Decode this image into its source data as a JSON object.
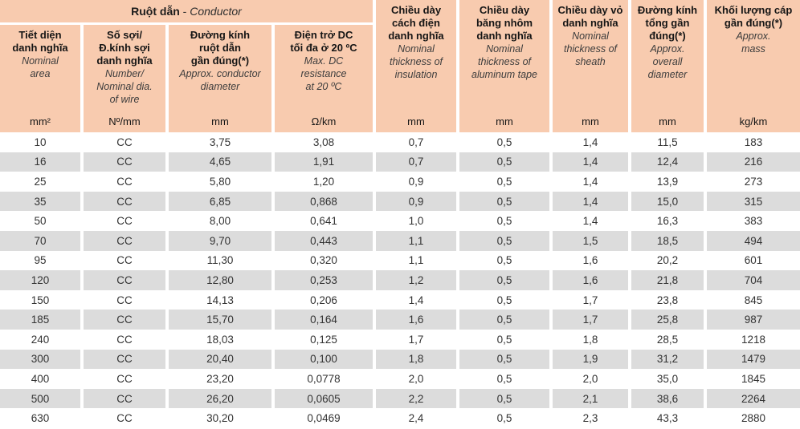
{
  "table": {
    "group_header": {
      "vi": "Ruột dẫn",
      "sep": " - ",
      "en": "Conductor"
    },
    "columns": [
      {
        "id": "nominal-area",
        "vi": "Tiết diện\ndanh nghĩa",
        "en": "Nominal\narea",
        "unit": "mm²"
      },
      {
        "id": "number-wire-dia",
        "vi": "Số sợi/\nĐ.kính sợi\ndanh nghĩa",
        "en": "Number/\nNominal dia.\nof wire",
        "unit": "Nº/mm"
      },
      {
        "id": "conductor-diameter",
        "vi": "Đường kính\nruột dẫn\ngần đúng(*)",
        "en": "Approx. conductor\ndiameter",
        "unit": "mm"
      },
      {
        "id": "dc-resistance",
        "vi": "Điện trở DC\ntối đa ở 20 ºC",
        "en": "Max. DC\nresistance\nat 20 ºC",
        "unit": "Ω/km"
      },
      {
        "id": "insulation-thickness",
        "vi": "Chiều dày\ncách điện\ndanh nghĩa",
        "en": "Nominal\nthickness of\ninsulation",
        "unit": "mm"
      },
      {
        "id": "aluminum-tape",
        "vi": "Chiều dày\nbăng nhôm\ndanh nghĩa",
        "en": "Nominal\nthickness of\naluminum tape",
        "unit": "mm"
      },
      {
        "id": "sheath-thickness",
        "vi": "Chiều dày vỏ\ndanh nghĩa",
        "en": "Nominal\nthickness of\nsheath",
        "unit": "mm"
      },
      {
        "id": "overall-diameter",
        "vi": "Đường kính\ntổng gần\nđúng(*)",
        "en": "Approx.\noverall\ndiameter",
        "unit": "mm"
      },
      {
        "id": "approx-mass",
        "vi": "Khối lượng cáp\ngần đúng(*)",
        "en": "Approx.\nmass",
        "unit": "kg/km"
      }
    ],
    "rows": [
      [
        "10",
        "CC",
        "3,75",
        "3,08",
        "0,7",
        "0,5",
        "1,4",
        "11,5",
        "183"
      ],
      [
        "16",
        "CC",
        "4,65",
        "1,91",
        "0,7",
        "0,5",
        "1,4",
        "12,4",
        "216"
      ],
      [
        "25",
        "CC",
        "5,80",
        "1,20",
        "0,9",
        "0,5",
        "1,4",
        "13,9",
        "273"
      ],
      [
        "35",
        "CC",
        "6,85",
        "0,868",
        "0,9",
        "0,5",
        "1,4",
        "15,0",
        "315"
      ],
      [
        "50",
        "CC",
        "8,00",
        "0,641",
        "1,0",
        "0,5",
        "1,4",
        "16,3",
        "383"
      ],
      [
        "70",
        "CC",
        "9,70",
        "0,443",
        "1,1",
        "0,5",
        "1,5",
        "18,5",
        "494"
      ],
      [
        "95",
        "CC",
        "11,30",
        "0,320",
        "1,1",
        "0,5",
        "1,6",
        "20,2",
        "601"
      ],
      [
        "120",
        "CC",
        "12,80",
        "0,253",
        "1,2",
        "0,5",
        "1,6",
        "21,8",
        "704"
      ],
      [
        "150",
        "CC",
        "14,13",
        "0,206",
        "1,4",
        "0,5",
        "1,7",
        "23,8",
        "845"
      ],
      [
        "185",
        "CC",
        "15,70",
        "0,164",
        "1,6",
        "0,5",
        "1,7",
        "25,8",
        "987"
      ],
      [
        "240",
        "CC",
        "18,03",
        "0,125",
        "1,7",
        "0,5",
        "1,8",
        "28,5",
        "1218"
      ],
      [
        "300",
        "CC",
        "20,40",
        "0,100",
        "1,8",
        "0,5",
        "1,9",
        "31,2",
        "1479"
      ],
      [
        "400",
        "CC",
        "23,20",
        "0,0778",
        "2,0",
        "0,5",
        "2,0",
        "35,0",
        "1845"
      ],
      [
        "500",
        "CC",
        "26,20",
        "0,0605",
        "2,2",
        "0,5",
        "2,1",
        "38,6",
        "2264"
      ],
      [
        "630",
        "CC",
        "30,20",
        "0,0469",
        "2,4",
        "0,5",
        "2,3",
        "43,3",
        "2880"
      ]
    ],
    "colors": {
      "header_bg": "#f8cbaf",
      "stripe_bg": "#dcdcdc",
      "data_text": "#333333",
      "header_text": "#151515"
    }
  }
}
